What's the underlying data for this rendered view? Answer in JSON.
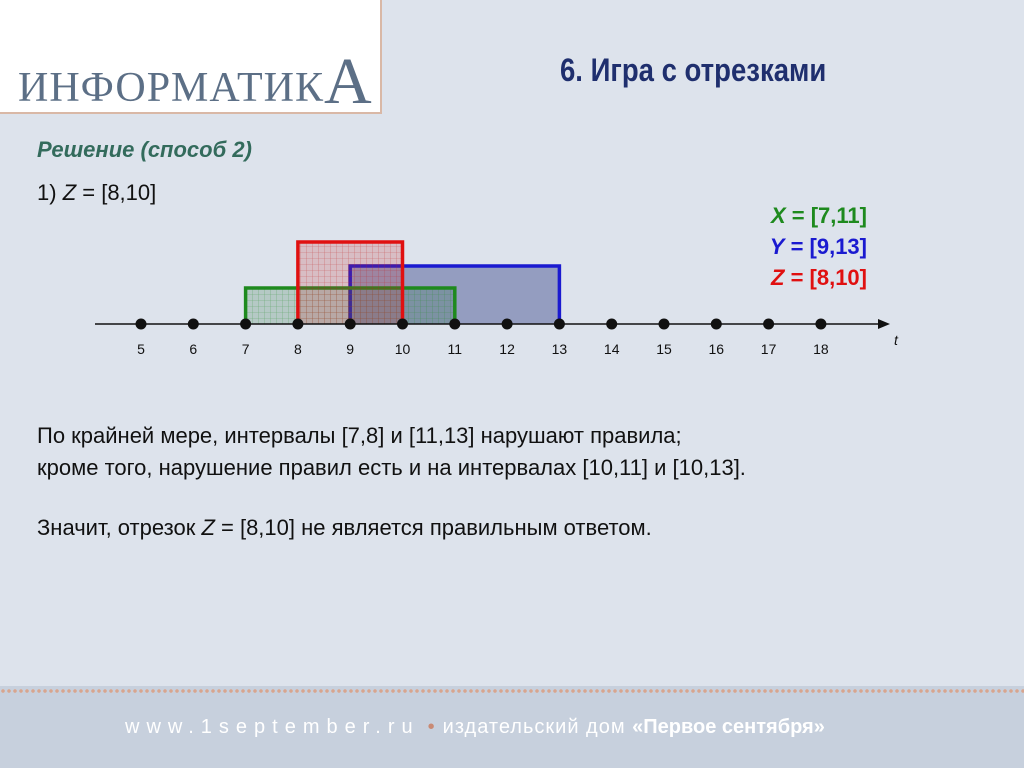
{
  "header": {
    "logo_text": "ИНФОРМАТИК",
    "logo_big_letter": "А",
    "title": "6. Игра с отрезками"
  },
  "subtitle": "Решение (способ 2)",
  "step": {
    "prefix": "1) ",
    "var": "Z",
    "rest": " = [8,10]"
  },
  "legend": [
    {
      "var": "X",
      "text": " = [7,11]",
      "color": "#1e8a1e"
    },
    {
      "var": "Y",
      "text": " = [9,13]",
      "color": "#1a1ad0"
    },
    {
      "var": "Z",
      "text": " = [8,10]",
      "color": "#e01010"
    }
  ],
  "axis": {
    "ticks": [
      5,
      6,
      7,
      8,
      9,
      10,
      11,
      12,
      13,
      14,
      15,
      16,
      17,
      18
    ],
    "label": "t"
  },
  "intervals": [
    {
      "name": "X",
      "from": 7,
      "to": 11,
      "color": "#1e8a1e"
    },
    {
      "name": "Y",
      "from": 9,
      "to": 13,
      "color": "#1a1ad0"
    },
    {
      "name": "Z",
      "from": 8,
      "to": 10,
      "color": "#e01010"
    }
  ],
  "body": {
    "line1": "По крайней мере, интервалы [7,8] и [11,13] нарушают правила;",
    "line2": "кроме того, нарушение правил есть и на интервалах [10,11] и [10,13].",
    "line3_a": "Значит, отрезок ",
    "line3_var": "Z",
    "line3_b": " = [8,10] не является правильным ответом."
  },
  "footer": {
    "site": "www.1september.ru",
    "bullet": "•",
    "publisher": "издательский дом ",
    "brand": "«Первое сентября»"
  }
}
